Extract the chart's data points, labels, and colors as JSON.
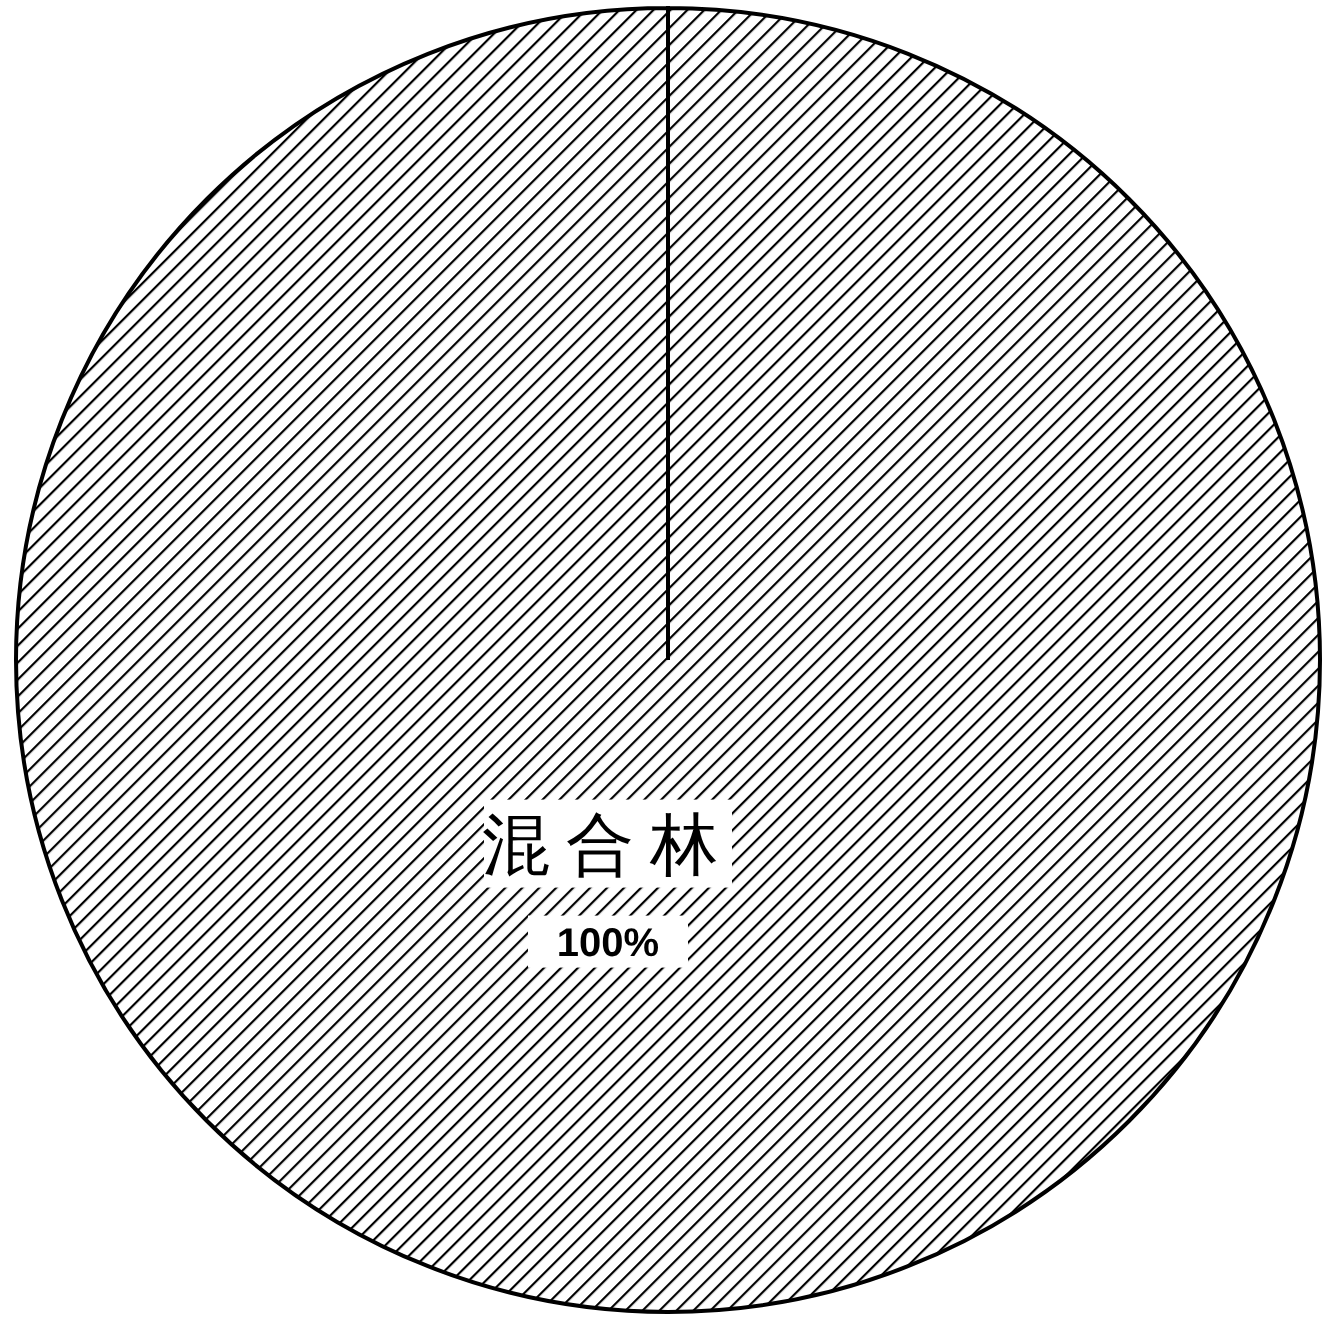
{
  "chart_data": {
    "type": "pie",
    "categories": [
      "混合林"
    ],
    "values": [
      100
    ],
    "colors": [
      "#000000"
    ],
    "value_labels": [
      "100%"
    ]
  }
}
